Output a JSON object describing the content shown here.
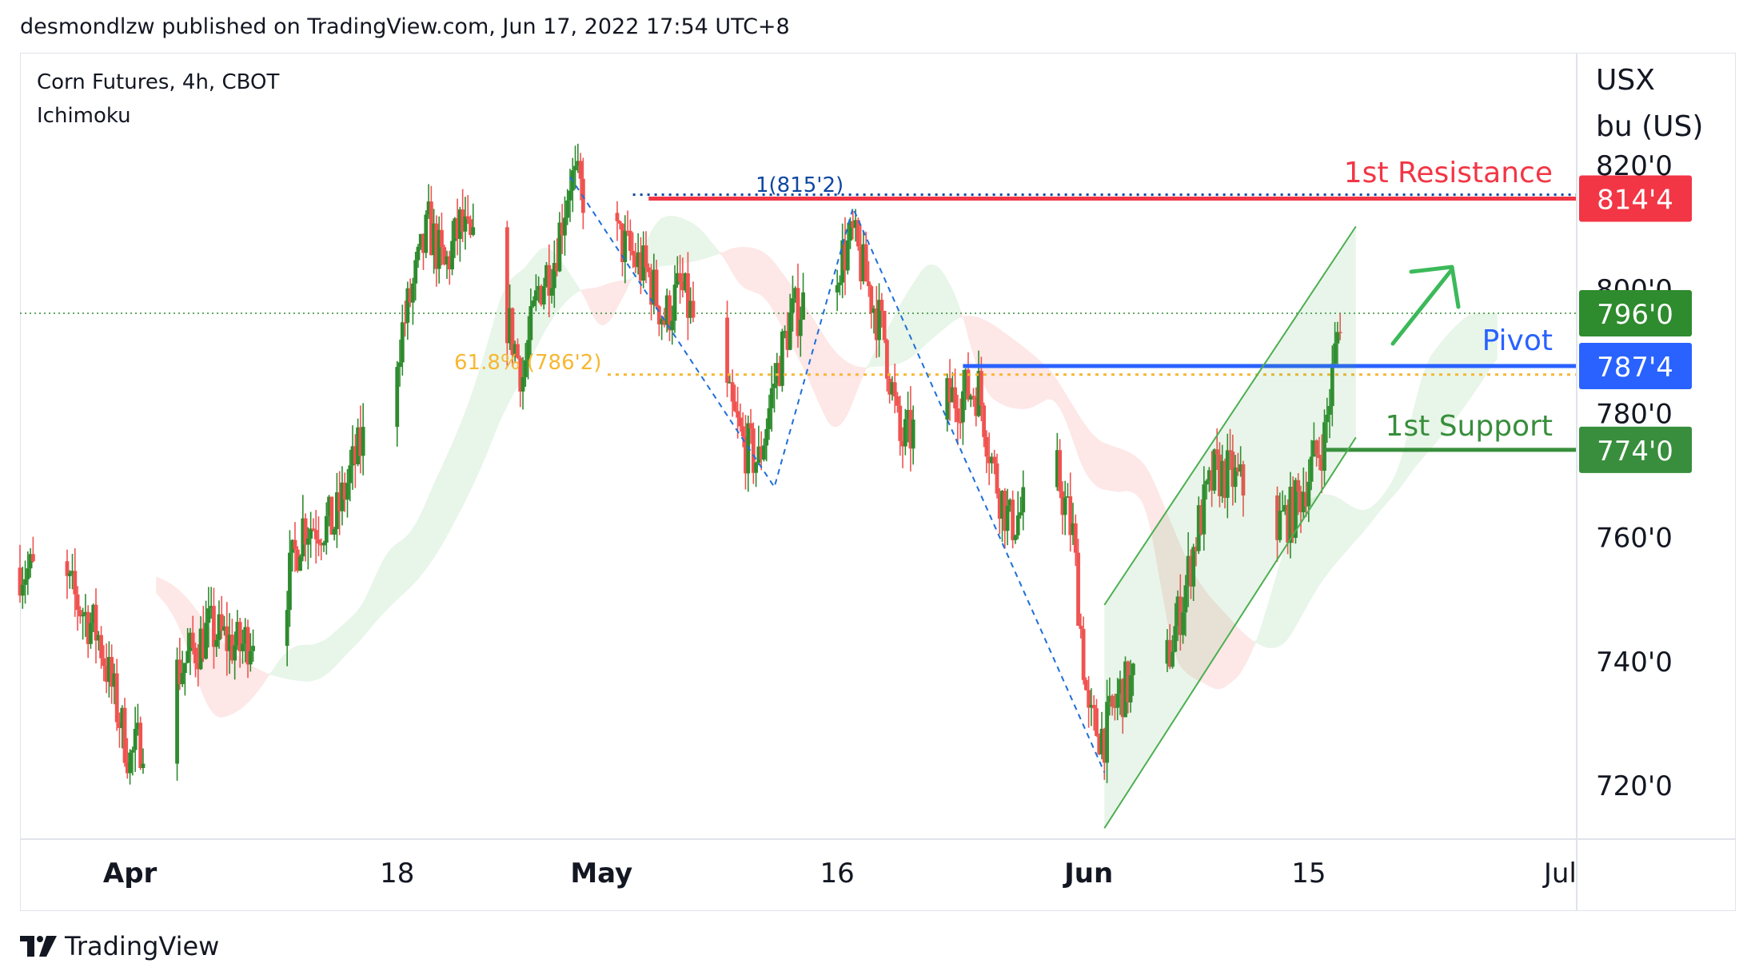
{
  "publisher_line": "desmondlzw published on TradingView.com, Jun 17, 2022 17:54 UTC+8",
  "legend": {
    "symbol": "Corn Futures, 4h, CBOT",
    "indicator": "Ichimoku"
  },
  "price_axis_unit": {
    "line1": "USX",
    "line2": "bu (US)"
  },
  "footer": {
    "brand": "TradingView",
    "logo_icon": "tradingview-logo-icon"
  },
  "colors": {
    "up": "#26a69a",
    "up_candle": "#2e8b2e",
    "down": "#ef5350",
    "resistance": "#f23645",
    "pivot": "#2962ff",
    "support": "#388e3c",
    "fib": "#f7b731",
    "fib_top": "#0d47a1",
    "channel": "#4caf50",
    "cloud_bull": "#e8f5e9",
    "cloud_bear": "#fde7e7",
    "axis_text": "#131722",
    "last_price": "#2e8b2e"
  },
  "chart_data": {
    "type": "candlestick",
    "title": "Corn Futures, 4h, CBOT",
    "x_ticks": [
      "Apr",
      "18",
      "May",
      "16",
      "Jun",
      "15",
      "Jul"
    ],
    "y_ticks": [
      "720'0",
      "740'0",
      "760'0",
      "780'0",
      "800'0",
      "820'0"
    ],
    "ylim": [
      710,
      825
    ],
    "x_range_days": [
      "2022-03-25",
      "2022-07-02"
    ],
    "price_labels": [
      {
        "text": "814'4",
        "value": 814.5,
        "color_key": "resistance"
      },
      {
        "text": "796'0",
        "value": 796.0,
        "color_key": "last_price"
      },
      {
        "text": "787'4",
        "value": 787.5,
        "color_key": "pivot"
      },
      {
        "text": "774'0",
        "value": 774.0,
        "color_key": "support"
      }
    ],
    "levels": [
      {
        "name": "1st Resistance",
        "value": 814.5,
        "color_key": "resistance"
      },
      {
        "name": "Pivot",
        "value": 787.5,
        "color_key": "pivot"
      },
      {
        "name": "1st Support",
        "value": 774.0,
        "color_key": "support"
      }
    ],
    "fibonacci": [
      {
        "text": "1(815'2)",
        "value": 815.25
      },
      {
        "text": "61.8% (786'2)",
        "value": 786.25
      }
    ],
    "last_price": 796.0,
    "price_path": [
      [
        "2022-03-25",
        755
      ],
      [
        "2022-03-28",
        752
      ],
      [
        "2022-03-30",
        744
      ],
      [
        "2022-04-01",
        724
      ],
      [
        "2022-04-04",
        738
      ],
      [
        "2022-04-06",
        745
      ],
      [
        "2022-04-08",
        742
      ],
      [
        "2022-04-11",
        752
      ],
      [
        "2022-04-12",
        762
      ],
      [
        "2022-04-14",
        762
      ],
      [
        "2022-04-15",
        770
      ],
      [
        "2022-04-18",
        790
      ],
      [
        "2022-04-19",
        800
      ],
      [
        "2022-04-20",
        810
      ],
      [
        "2022-04-21",
        803
      ],
      [
        "2022-04-22",
        810
      ],
      [
        "2022-04-25",
        795
      ],
      [
        "2022-04-26",
        786
      ],
      [
        "2022-04-27",
        800
      ],
      [
        "2022-04-28",
        805
      ],
      [
        "2022-04-29",
        818
      ],
      [
        "2022-05-02",
        808
      ],
      [
        "2022-05-03",
        805
      ],
      [
        "2022-05-04",
        802
      ],
      [
        "2022-05-05",
        795
      ],
      [
        "2022-05-06",
        800
      ],
      [
        "2022-05-09",
        782
      ],
      [
        "2022-05-10",
        775
      ],
      [
        "2022-05-11",
        772
      ],
      [
        "2022-05-12",
        785
      ],
      [
        "2022-05-13",
        795
      ],
      [
        "2022-05-16",
        804
      ],
      [
        "2022-05-17",
        808
      ],
      [
        "2022-05-18",
        800
      ],
      [
        "2022-05-19",
        792
      ],
      [
        "2022-05-20",
        775
      ],
      [
        "2022-05-23",
        782
      ],
      [
        "2022-05-24",
        783
      ],
      [
        "2022-05-25",
        784
      ],
      [
        "2022-05-26",
        770
      ],
      [
        "2022-05-27",
        762
      ],
      [
        "2022-05-30",
        770
      ],
      [
        "2022-05-31",
        760
      ],
      [
        "2022-06-01",
        730
      ],
      [
        "2022-06-02",
        728
      ],
      [
        "2022-06-03",
        735
      ],
      [
        "2022-06-06",
        740
      ],
      [
        "2022-06-07",
        750
      ],
      [
        "2022-06-08",
        762
      ],
      [
        "2022-06-09",
        770
      ],
      [
        "2022-06-10",
        770
      ],
      [
        "2022-06-13",
        762
      ],
      [
        "2022-06-14",
        764
      ],
      [
        "2022-06-15",
        770
      ],
      [
        "2022-06-16",
        776
      ],
      [
        "2022-06-17",
        796
      ]
    ]
  }
}
